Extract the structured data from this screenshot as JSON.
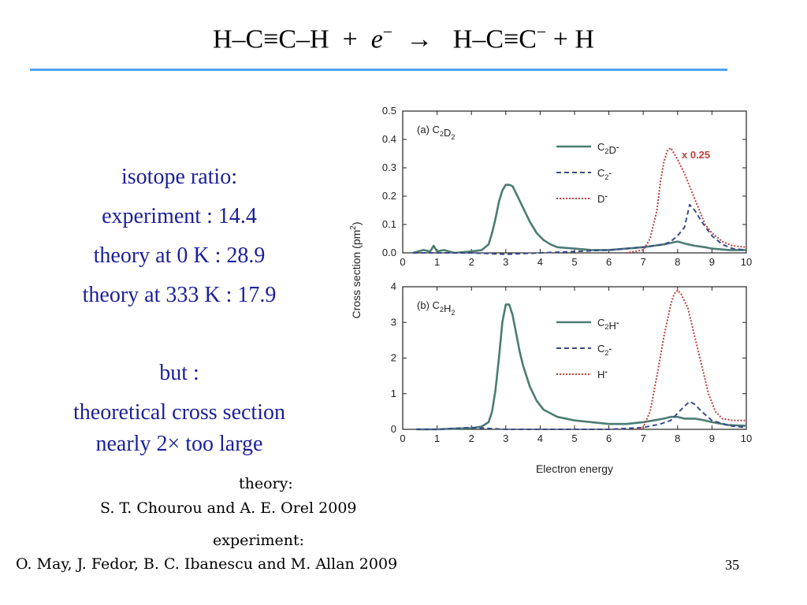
{
  "title": {
    "reactant1": "H–C≡C–H",
    "plus1": "+",
    "electron": "e",
    "electron_charge": "−",
    "arrow": "→",
    "product1_main": "H–C≡C",
    "product1_charge": "−",
    "plus2": "+",
    "product2": "H"
  },
  "stats": {
    "line1": "isotope ratio:",
    "line2": "experiment : 14.4",
    "line3": "theory at 0 K : 28.9",
    "line4": "theory at 333 K : 17.9",
    "line5": "but :",
    "line6": "theoretical cross section",
    "line7": "nearly 2× too large"
  },
  "citations": {
    "theory_label": "theory:",
    "theory_ref": "S. T. Chourou and A. E. Orel 2009",
    "experiment_label": "experiment:",
    "experiment_ref": "O. May, J. Fedor, B. C. Ibanescu and M. Allan 2009"
  },
  "page_number": "35",
  "colors": {
    "title_rule": "#4da3f5",
    "text_blue": "#1b1f9a",
    "series_green": "#4a7c72",
    "series_navy": "#3b4a8c",
    "series_red": "#b8403a"
  },
  "chart_data": [
    {
      "type": "line",
      "panel_label": "(a) C2D2",
      "annotation": "x 0.25",
      "xlabel": "Electron energy",
      "ylabel": "Cross section (pm2)",
      "xlim": [
        0,
        10
      ],
      "ylim": [
        0,
        0.5
      ],
      "xticks": [
        0,
        1,
        2,
        3,
        4,
        5,
        6,
        7,
        8,
        9,
        10
      ],
      "yticks": [
        "0.0",
        "0.1",
        "0.2",
        "0.3",
        "0.4",
        "0.5"
      ],
      "series": [
        {
          "name": "C2D-",
          "style": "solid",
          "color": "#4a7c72",
          "x": [
            0.3,
            0.6,
            0.8,
            0.9,
            1.0,
            1.2,
            1.5,
            2.0,
            2.3,
            2.5,
            2.6,
            2.7,
            2.8,
            2.9,
            3.0,
            3.1,
            3.2,
            3.3,
            3.5,
            3.7,
            3.9,
            4.1,
            4.3,
            4.5,
            5.0,
            5.5,
            6.0,
            6.5,
            7.0,
            7.3,
            7.6,
            7.8,
            8.0,
            8.3,
            8.5,
            8.8,
            9.0,
            9.5,
            10.0
          ],
          "y": [
            0.0,
            0.01,
            0.005,
            0.025,
            0.005,
            0.01,
            0.0,
            0.005,
            0.01,
            0.03,
            0.07,
            0.12,
            0.18,
            0.22,
            0.24,
            0.24,
            0.235,
            0.21,
            0.16,
            0.11,
            0.07,
            0.045,
            0.03,
            0.02,
            0.015,
            0.01,
            0.01,
            0.015,
            0.02,
            0.025,
            0.03,
            0.035,
            0.04,
            0.03,
            0.025,
            0.02,
            0.015,
            0.01,
            0.01
          ]
        },
        {
          "name": "C2-",
          "style": "dashed",
          "color": "#3b4a8c",
          "x": [
            0.3,
            1.0,
            2.0,
            3.0,
            4.0,
            5.0,
            6.0,
            6.5,
            7.0,
            7.3,
            7.6,
            7.8,
            8.0,
            8.2,
            8.35,
            8.5,
            8.7,
            9.0,
            9.3,
            9.6,
            10.0
          ],
          "y": [
            0.0,
            0.0,
            0.0,
            -0.005,
            0.0,
            0.005,
            0.01,
            0.015,
            0.02,
            0.025,
            0.03,
            0.04,
            0.06,
            0.09,
            0.17,
            0.15,
            0.11,
            0.06,
            0.03,
            0.015,
            0.01
          ]
        },
        {
          "name": "D-",
          "style": "dotted",
          "color": "#b8403a",
          "x": [
            6.5,
            7.0,
            7.2,
            7.4,
            7.5,
            7.6,
            7.7,
            7.8,
            7.9,
            8.0,
            8.2,
            8.4,
            8.6,
            8.8,
            9.0,
            9.3,
            9.6,
            10.0
          ],
          "y": [
            0.0,
            0.01,
            0.05,
            0.15,
            0.25,
            0.32,
            0.36,
            0.37,
            0.35,
            0.33,
            0.28,
            0.22,
            0.16,
            0.1,
            0.07,
            0.04,
            0.025,
            0.02
          ]
        }
      ]
    },
    {
      "type": "line",
      "panel_label": "(b) C2H2",
      "xlabel": "Electron energy",
      "ylabel": "Cross section (pm2)",
      "xlim": [
        0,
        10
      ],
      "ylim": [
        0,
        4
      ],
      "xticks": [
        0,
        1,
        2,
        3,
        4,
        5,
        6,
        7,
        8,
        9,
        10
      ],
      "yticks": [
        "0",
        "1",
        "2",
        "3",
        "4"
      ],
      "series": [
        {
          "name": "C2H-",
          "style": "solid",
          "color": "#4a7c72",
          "x": [
            0.4,
            1.0,
            1.5,
            2.0,
            2.3,
            2.5,
            2.6,
            2.7,
            2.8,
            2.9,
            3.0,
            3.1,
            3.2,
            3.3,
            3.4,
            3.5,
            3.7,
            3.9,
            4.1,
            4.3,
            4.5,
            5.0,
            5.5,
            6.0,
            6.5,
            7.0,
            7.3,
            7.6,
            7.8,
            8.0,
            8.2,
            8.5,
            8.8,
            9.0,
            9.5,
            10.0
          ],
          "y": [
            0.0,
            0.0,
            0.02,
            0.03,
            0.08,
            0.2,
            0.5,
            1.1,
            2.0,
            3.0,
            3.5,
            3.5,
            3.2,
            2.7,
            2.2,
            1.8,
            1.2,
            0.8,
            0.55,
            0.45,
            0.35,
            0.25,
            0.2,
            0.15,
            0.15,
            0.2,
            0.25,
            0.3,
            0.35,
            0.35,
            0.3,
            0.3,
            0.25,
            0.2,
            0.12,
            0.1
          ]
        },
        {
          "name": "C2-",
          "style": "dashed",
          "color": "#3b4a8c",
          "x": [
            0.4,
            1.0,
            2.0,
            3.0,
            4.0,
            5.0,
            6.0,
            7.0,
            7.5,
            7.8,
            8.0,
            8.2,
            8.35,
            8.5,
            8.7,
            9.0,
            9.5,
            10.0
          ],
          "y": [
            0.0,
            0.0,
            0.05,
            0.0,
            0.0,
            0.0,
            0.0,
            0.05,
            0.15,
            0.25,
            0.45,
            0.65,
            0.78,
            0.7,
            0.5,
            0.25,
            0.1,
            0.05
          ]
        },
        {
          "name": "H-",
          "style": "dotted",
          "color": "#b8403a",
          "x": [
            6.8,
            7.0,
            7.2,
            7.4,
            7.6,
            7.8,
            7.9,
            8.0,
            8.1,
            8.3,
            8.5,
            8.7,
            8.9,
            9.1,
            9.3,
            9.6,
            10.0
          ],
          "y": [
            0.0,
            0.05,
            0.5,
            1.5,
            2.6,
            3.5,
            3.8,
            3.9,
            3.8,
            3.4,
            2.6,
            1.8,
            1.0,
            0.5,
            0.3,
            0.25,
            0.25
          ]
        }
      ]
    }
  ]
}
